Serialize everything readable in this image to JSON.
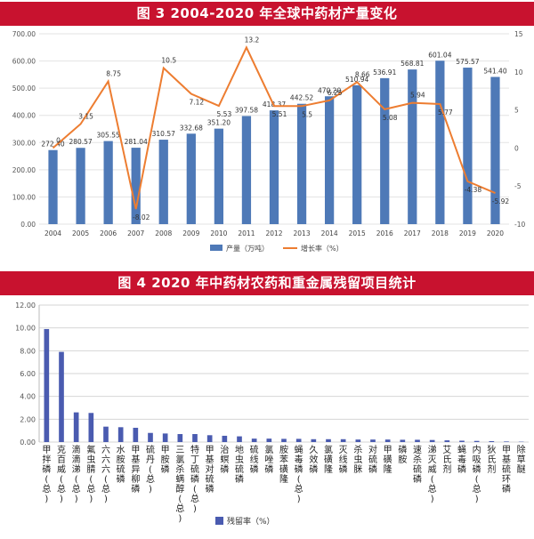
{
  "colors": {
    "banner": "#c8122f",
    "bar1": "#4e79b7",
    "line1": "#ed7d31",
    "bar2": "#4a5bb0"
  },
  "chart_data": [
    {
      "type": "bar+line",
      "title": "图 3 2004-2020 年全球中药材产量变化",
      "categories": [
        "2004",
        "2005",
        "2006",
        "2007",
        "2008",
        "2009",
        "2010",
        "2011",
        "2012",
        "2013",
        "2014",
        "2015",
        "2016",
        "2017",
        "2018",
        "2019",
        "2020"
      ],
      "series": [
        {
          "name": "产量（万吨）",
          "type": "bar",
          "axis": "left",
          "values": [
            272.4,
            280.57,
            305.55,
            281.04,
            310.57,
            332.68,
            351.2,
            397.58,
            418.37,
            442.52,
            470.2,
            510.94,
            536.91,
            568.81,
            601.04,
            575.57,
            541.4
          ],
          "labels": [
            "272.40",
            "280.57",
            "305.55",
            "281.04",
            "310.57",
            "332.68",
            "351.20",
            "397.58",
            "418.37",
            "442.52",
            "470.20",
            "510.94",
            "536.91",
            "568.81",
            "601.04",
            "575.57",
            "541.40"
          ]
        },
        {
          "name": "增长率（%）",
          "type": "line",
          "axis": "right",
          "values": [
            0,
            3.15,
            8.75,
            -8.02,
            10.5,
            7.12,
            5.53,
            13.2,
            5.51,
            5.5,
            6.25,
            8.66,
            5.08,
            5.94,
            5.77,
            -4.38,
            -5.92
          ],
          "labels": [
            "0",
            "3.15",
            "8.75",
            "-8.02",
            "10.5",
            "7.12",
            "5.53",
            "13.2",
            "5.51",
            "5.5",
            "6.25",
            "8.66",
            "5.08",
            "5.94",
            "5.77",
            "-4.38",
            "-5.92"
          ]
        }
      ],
      "ylim_left": [
        0,
        700
      ],
      "yticks_left": [
        "0.00",
        "100.00",
        "200.00",
        "300.00",
        "400.00",
        "500.00",
        "600.00",
        "700.00"
      ],
      "ylim_right": [
        -10,
        15
      ],
      "yticks_right": [
        "-10",
        "-5",
        "0",
        "5",
        "10",
        "15"
      ],
      "legend": [
        "产量（万吨）",
        "增长率（%）"
      ],
      "grid": true,
      "legend_position": "bottom-center"
    },
    {
      "type": "bar",
      "title": "图 4 2020 年中药材农药和重金属残留项目统计",
      "categories": [
        "甲拌磷(总)",
        "克百威(总)",
        "滴滴涕(总)",
        "氟虫腈(总)",
        "六六六(总)",
        "水胺硫磷",
        "甲基异柳磷",
        "硫丹(总)",
        "甲胺磷",
        "三氯杀螨醇(总)",
        "特丁硫磷(总)",
        "甲基对硫磷",
        "治螟磷",
        "地虫硫磷",
        "硫线磷",
        "氯唑磷",
        "胺苯磺隆",
        "蝇毒磷(总)",
        "久效磷",
        "氯磺隆",
        "灭线磷",
        "杀虫脒",
        "对硫磷",
        "甲磺隆",
        "磷胺",
        "速杀硫磷",
        "涕灭威(总)",
        "艾氏剂",
        "蝇毒磷",
        "内吸磷(总)",
        "狄氏剂",
        "甲基硫环磷",
        "除草醚"
      ],
      "values": [
        9.9,
        7.9,
        2.6,
        2.55,
        1.35,
        1.3,
        1.25,
        0.8,
        0.75,
        0.7,
        0.7,
        0.6,
        0.55,
        0.5,
        0.3,
        0.3,
        0.28,
        0.28,
        0.25,
        0.25,
        0.25,
        0.22,
        0.22,
        0.22,
        0.2,
        0.2,
        0.18,
        0.15,
        0.12,
        0.1,
        0.08,
        0.05,
        0.03
      ],
      "ylim": [
        0,
        12
      ],
      "yticks": [
        "0.00",
        "2.00",
        "4.00",
        "6.00",
        "8.00",
        "10.00",
        "12.00"
      ],
      "legend": [
        "残留率（%）"
      ],
      "grid": true,
      "legend_position": "bottom-center"
    }
  ]
}
